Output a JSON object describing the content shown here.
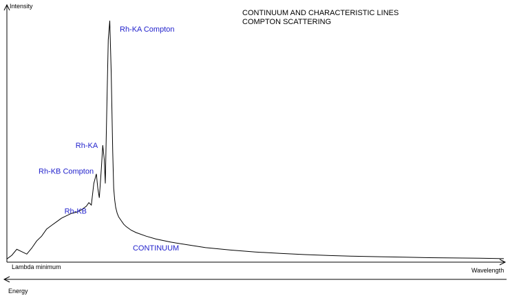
{
  "chart_data": {
    "type": "line",
    "title": [
      "CONTINUUM AND CHARACTERISTIC LINES",
      "COMPTON SCATTERING"
    ],
    "ylabel": "Intensity",
    "xlabel": "Wavelength",
    "x_start_label": "Lambda minimum",
    "energy_axis_label": "Energy",
    "line_color": "#000000",
    "annotation_color": "#2222cc",
    "xlim": [
      0,
      100
    ],
    "ylim": [
      0,
      100
    ],
    "annotations": [
      {
        "text": "Rh-KA Compton",
        "x": 21.6,
        "y": 100
      },
      {
        "text": "Rh-KA",
        "x": 19.7,
        "y": 48
      },
      {
        "text": "Rh-KB Compton",
        "x": 18.3,
        "y": 36
      },
      {
        "text": "Rh-KB",
        "x": 16.9,
        "y": 20
      },
      {
        "text": "CONTINUUM",
        "x": 30,
        "y": 4
      }
    ],
    "series": [
      {
        "x": [
          0,
          1,
          2,
          3,
          4,
          5,
          6,
          7,
          8,
          9,
          10,
          11,
          12,
          13,
          14,
          15,
          16,
          16.5,
          17,
          17.5,
          18,
          18.3,
          18.6,
          19,
          19.3,
          19.6,
          19.8,
          20.1,
          20.4,
          20.7,
          21,
          21.3,
          21.5,
          21.7,
          21.9,
          22.2,
          22.5,
          23,
          23.5,
          24,
          25,
          26,
          28,
          30,
          33,
          36,
          40,
          45,
          50,
          55,
          60,
          65,
          70,
          75,
          80,
          85,
          90,
          95,
          100
        ],
        "y": [
          0.5,
          2,
          4.5,
          3.5,
          2.5,
          5,
          8,
          10,
          13,
          14.5,
          16,
          17.5,
          18.5,
          19.5,
          20,
          21,
          22.5,
          24,
          23,
          32,
          36,
          30,
          26,
          38,
          48,
          42,
          32,
          62,
          92,
          100,
          78,
          45,
          30,
          25,
          22,
          19.5,
          18,
          16.5,
          15,
          14,
          12.5,
          11.5,
          10,
          8.8,
          7.5,
          6.5,
          5.2,
          4.2,
          3.4,
          2.8,
          2.3,
          1.9,
          1.6,
          1.4,
          1.2,
          1.0,
          0.9,
          0.8,
          0.6
        ]
      }
    ]
  }
}
